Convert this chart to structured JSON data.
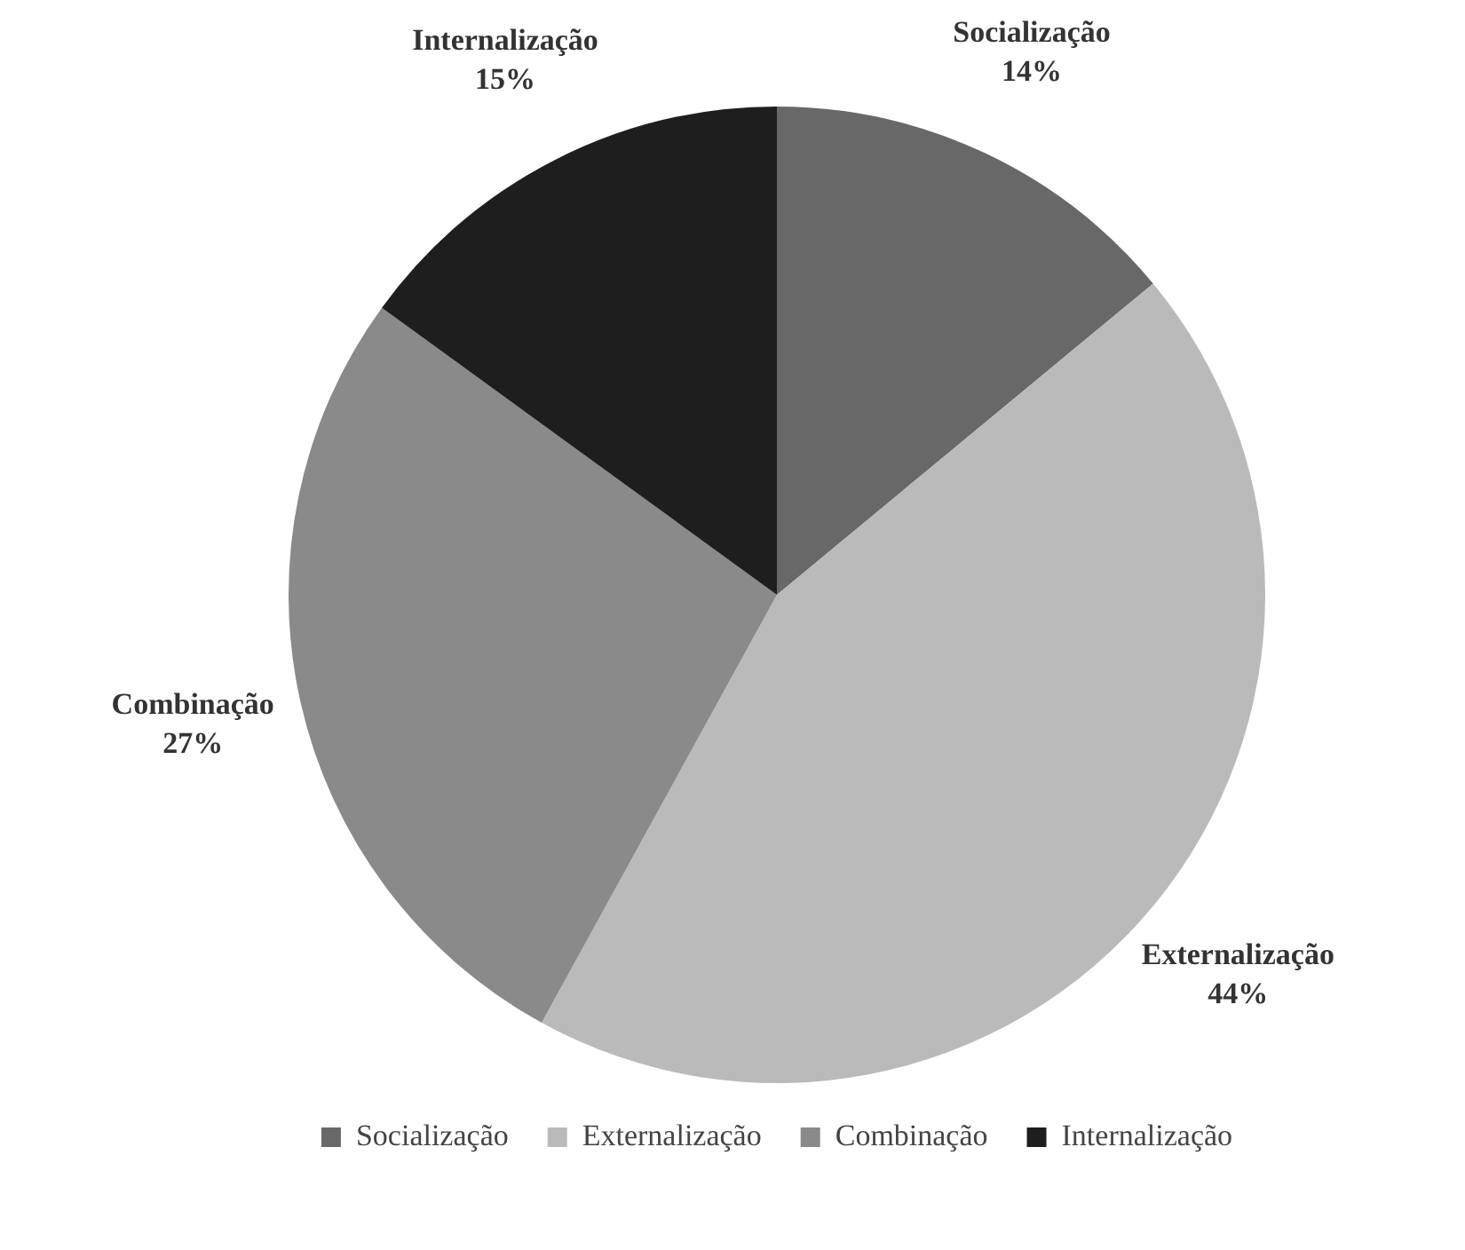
{
  "chart_data": {
    "type": "pie",
    "categories": [
      "Socialização",
      "Externalização",
      "Combinação",
      "Internalização"
    ],
    "values": [
      14,
      44,
      27,
      15
    ],
    "colors": [
      "#686868",
      "#bababa",
      "#8a8a8a",
      "#1e1e1e"
    ],
    "value_labels": [
      "14%",
      "44%",
      "27%",
      "15%"
    ],
    "legend": "bottom"
  }
}
